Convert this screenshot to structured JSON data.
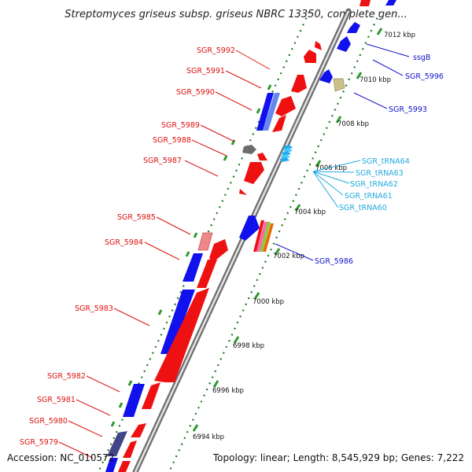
{
  "title": "Streptomyces griseus subsp. griseus NBRC 13350, complete gen...",
  "footer": {
    "accession": "Accession: NC_010572",
    "topology": "Topology: linear; Length: 8,545,929 bp; Genes: 7,222"
  },
  "ruler": [
    "7012 kbp",
    "7010 kbp",
    "7008 kbp",
    "7006 kbp",
    "7004 kbp",
    "7002 kbp",
    "7000 kbp",
    "6998 kbp",
    "6996 kbp",
    "6994 kbp"
  ],
  "left_labels": [
    "SGR_5992",
    "SGR_5991",
    "SGR_5990",
    "SGR_5989",
    "SGR_5988",
    "SGR_5987",
    "SGR_5985",
    "SGR_5984",
    "SGR_5983",
    "SGR_5982",
    "SGR_5981",
    "SGR_5980",
    "SGR_5979"
  ],
  "right_labels": [
    "ssgB",
    "SGR_5996",
    "SGR_5993",
    "SGR_tRNA64",
    "SGR_tRNA63",
    "SGR_tRNA62",
    "SGR_tRNA61",
    "SGR_tRNA60",
    "SGR_5986"
  ],
  "colors": {
    "plus_strand": "#ee1111",
    "minus_strand": "#1111ee",
    "trna": "#33bbee",
    "ruler_tick": "#228b22",
    "left_label": "#dd1111",
    "right_label_blue": "#1111cc",
    "right_label_cyan": "#22aadd"
  }
}
